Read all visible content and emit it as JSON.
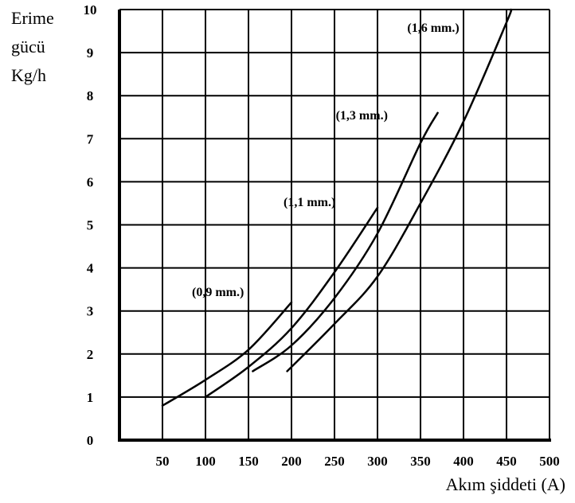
{
  "chart_data": {
    "type": "line",
    "ylabel_lines": [
      "Erime",
      "gücü",
      "Kg/h"
    ],
    "xlabel": "Akım şiddeti (A)",
    "xlim": [
      0,
      500
    ],
    "ylim": [
      0,
      10
    ],
    "x_ticks": [
      50,
      100,
      150,
      200,
      250,
      300,
      350,
      400,
      450,
      500
    ],
    "y_ticks": [
      0,
      1,
      2,
      3,
      4,
      5,
      6,
      7,
      8,
      9,
      10
    ],
    "grid": true,
    "series": [
      {
        "name": "(0,9 mm.)",
        "x": [
          50,
          100,
          150,
          200
        ],
        "y": [
          0.8,
          1.4,
          2.1,
          3.2
        ]
      },
      {
        "name": "(1,1 mm.)",
        "x": [
          100,
          150,
          200,
          250,
          300
        ],
        "y": [
          1.0,
          1.7,
          2.6,
          3.9,
          5.4
        ]
      },
      {
        "name": "(1,3 mm.)",
        "x": [
          155,
          200,
          250,
          300,
          350,
          370
        ],
        "y": [
          1.6,
          2.2,
          3.3,
          4.8,
          6.9,
          7.6
        ]
      },
      {
        "name": "(1,6 mm.)",
        "x": [
          195,
          250,
          300,
          350,
          400,
          450,
          455
        ],
        "y": [
          1.6,
          2.7,
          3.8,
          5.5,
          7.4,
          9.7,
          10.0
        ]
      }
    ]
  }
}
